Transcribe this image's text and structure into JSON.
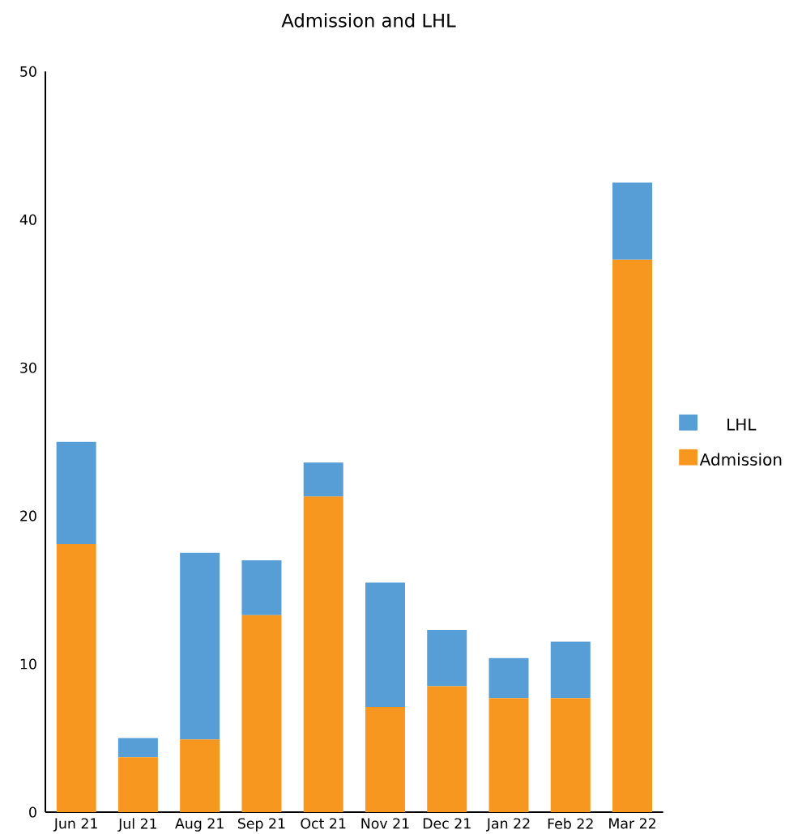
{
  "chart_data": {
    "type": "bar",
    "title": "Admission and LHL",
    "stacked": true,
    "categories": [
      "Jun 21",
      "Jul 21",
      "Aug 21",
      "Sep 21",
      "Oct 21",
      "Nov 21",
      "Dec 21",
      "Jan 22",
      "Feb 22",
      "Mar 22"
    ],
    "series": [
      {
        "name": "Admission",
        "color": "#f7971f",
        "values": [
          18.1,
          3.7,
          4.9,
          13.3,
          21.3,
          7.1,
          8.5,
          7.7,
          7.7,
          37.3
        ]
      },
      {
        "name": "LHL",
        "color": "#579dd6",
        "values": [
          6.9,
          1.3,
          12.6,
          3.7,
          2.3,
          8.4,
          3.8,
          2.7,
          3.8,
          5.2
        ]
      }
    ],
    "ylim": [
      0,
      50
    ],
    "yticks": [
      0,
      10,
      20,
      30,
      40,
      50
    ],
    "grid": false,
    "legend": "right"
  }
}
